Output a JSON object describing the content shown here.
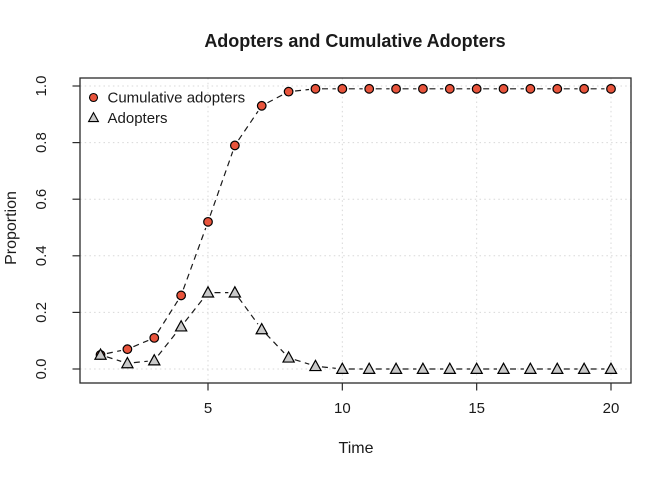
{
  "window": {
    "background": "#ffffff"
  },
  "chart_data": {
    "type": "line",
    "title": "Adopters and Cumulative Adopters",
    "xlabel": "Time",
    "ylabel": "Proportion",
    "x": [
      1,
      2,
      3,
      4,
      5,
      6,
      7,
      8,
      9,
      10,
      11,
      12,
      13,
      14,
      15,
      16,
      17,
      18,
      19,
      20
    ],
    "series": [
      {
        "name": "Cumulative adopters",
        "marker": "circle",
        "color": "#e8543c",
        "values": [
          0.05,
          0.07,
          0.11,
          0.26,
          0.52,
          0.79,
          0.93,
          0.98,
          0.99,
          0.99,
          0.99,
          0.99,
          0.99,
          0.99,
          0.99,
          0.99,
          0.99,
          0.99,
          0.99,
          0.99
        ]
      },
      {
        "name": "Adopters",
        "marker": "triangle",
        "color": "#c9c9c9",
        "values": [
          0.05,
          0.02,
          0.03,
          0.15,
          0.27,
          0.27,
          0.14,
          0.04,
          0.01,
          0.0,
          0.0,
          0.0,
          0.0,
          0.0,
          0.0,
          0.0,
          0.0,
          0.0,
          0.0,
          0.0
        ]
      }
    ],
    "line_style": "dashed",
    "line_color": "#1a1a1a",
    "marker_outline": "#000000",
    "xticks": [
      5,
      10,
      15,
      20
    ],
    "xtick_labels": [
      "5",
      "10",
      "15",
      "20"
    ],
    "yticks": [
      0.0,
      0.2,
      0.4,
      0.6,
      0.8,
      1.0
    ],
    "ytick_labels": [
      "0.0",
      "0.2",
      "0.4",
      "0.6",
      "0.8",
      "1.0"
    ],
    "xlim": [
      0.3,
      20.7
    ],
    "ylim": [
      -0.05,
      1.05
    ],
    "grid": "dotted gridlines at axis ticks",
    "grid_color": "#d8d8d8",
    "legend_position": "top-left-inside",
    "legend_frame": false
  }
}
